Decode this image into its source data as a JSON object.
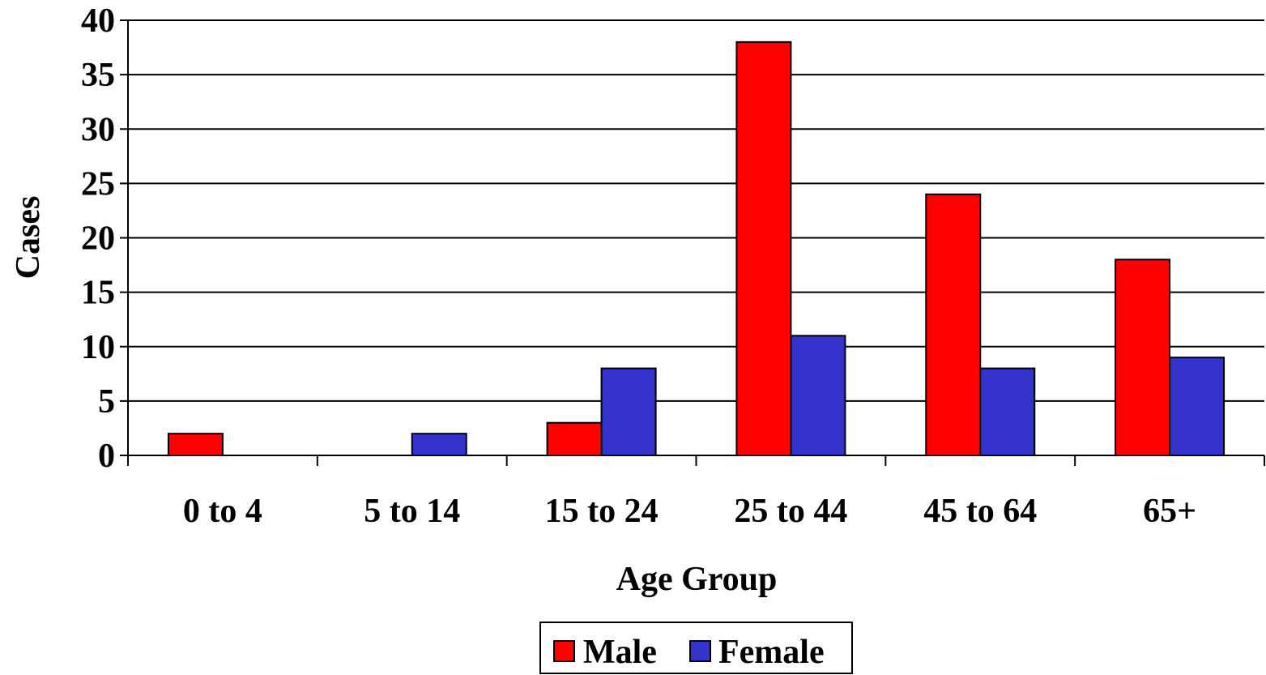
{
  "chart_data": {
    "type": "bar",
    "title": "",
    "xlabel": "Age Group",
    "ylabel": "Cases",
    "categories": [
      "0 to 4",
      "5 to 14",
      "15 to 24",
      "25 to 44",
      "45 to 64",
      "65+"
    ],
    "series": [
      {
        "name": "Male",
        "color": "#ff0000",
        "values": [
          2,
          0,
          3,
          38,
          24,
          18
        ]
      },
      {
        "name": "Female",
        "color": "#3333cc",
        "values": [
          0,
          2,
          8,
          11,
          8,
          9
        ]
      }
    ],
    "ylim": [
      0,
      40
    ],
    "yticks": [
      0,
      5,
      10,
      15,
      20,
      25,
      30,
      35,
      40
    ],
    "grid": true,
    "legend_position": "bottom-center"
  }
}
